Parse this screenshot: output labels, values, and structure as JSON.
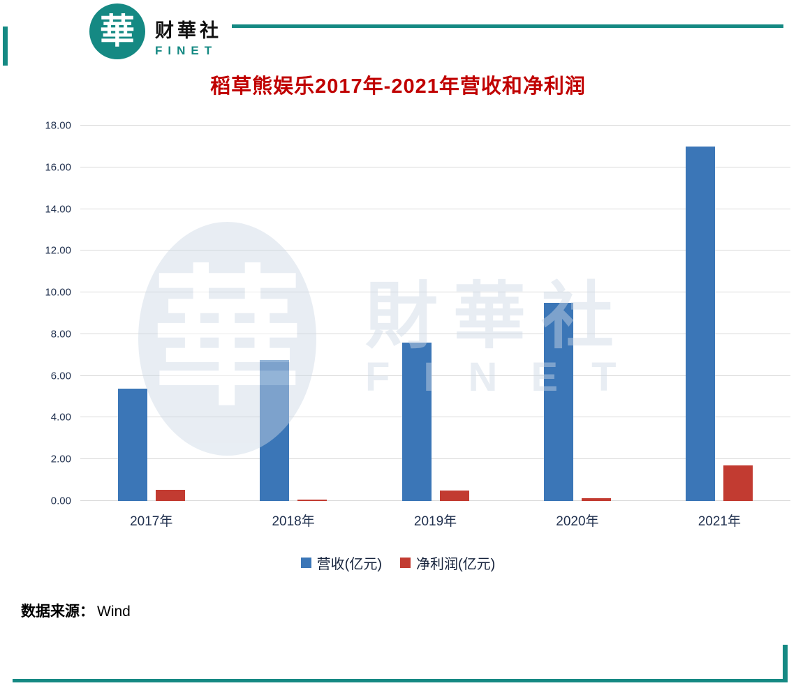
{
  "brand": {
    "logo_char": "華",
    "name_cn": "财華社",
    "name_en": "FINET"
  },
  "watermark": {
    "logo_char": "華",
    "name_cn": "財華社",
    "name_en": "FINET"
  },
  "source": {
    "label": "数据来源：",
    "value": "Wind"
  },
  "colors": {
    "accent_teal": "#158983",
    "title_red": "#C00000",
    "bar_blue": "#3B76B7",
    "bar_red": "#C23B31",
    "axis_text": "#1F2F4D",
    "gridline": "#D9D9D9",
    "watermark": "#CDD9E6"
  },
  "chart_data": {
    "type": "bar",
    "title": "稻草熊娱乐2017年-2021年营收和净利润",
    "categories": [
      "2017年",
      "2018年",
      "2019年",
      "2020年",
      "2021年"
    ],
    "series": [
      {
        "name": "营收(亿元)",
        "color": "#3B76B7",
        "values": [
          5.4,
          6.75,
          7.6,
          9.5,
          17.0
        ]
      },
      {
        "name": "净利润(亿元)",
        "color": "#C23B31",
        "values": [
          0.55,
          0.08,
          0.5,
          0.15,
          1.7
        ]
      }
    ],
    "xlabel": "",
    "ylabel": "",
    "ylim": [
      0,
      18
    ],
    "ytick_step": 2,
    "ytick_labels": [
      "0.00",
      "2.00",
      "4.00",
      "6.00",
      "8.00",
      "10.00",
      "12.00",
      "14.00",
      "16.00",
      "18.00"
    ],
    "grid": true,
    "legend_position": "bottom"
  }
}
